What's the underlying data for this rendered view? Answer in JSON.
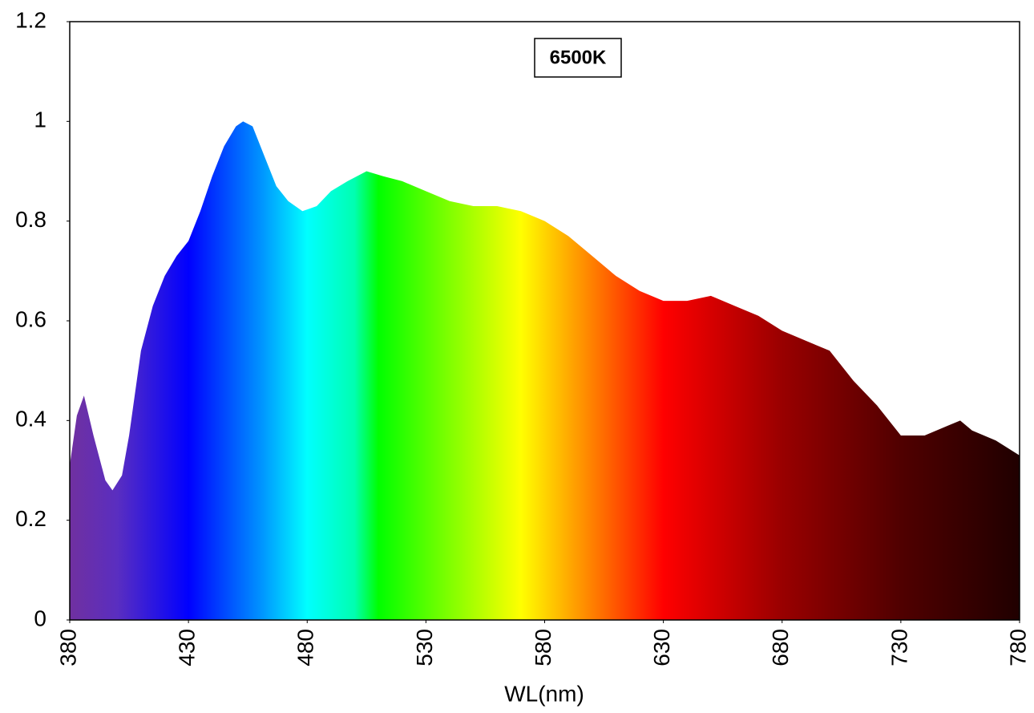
{
  "chart_data": {
    "type": "area",
    "annotation": "6500K",
    "xlabel": "WL(nm)",
    "x": [
      380,
      383,
      386,
      390,
      395,
      398,
      402,
      405,
      410,
      415,
      420,
      425,
      430,
      435,
      440,
      445,
      450,
      453,
      457,
      462,
      467,
      472,
      478,
      484,
      490,
      497,
      505,
      512,
      520,
      530,
      540,
      550,
      560,
      570,
      580,
      590,
      600,
      610,
      620,
      630,
      640,
      650,
      660,
      670,
      680,
      690,
      700,
      710,
      720,
      730,
      740,
      750,
      755,
      760,
      770,
      780
    ],
    "values": [
      0.31,
      0.41,
      0.45,
      0.37,
      0.28,
      0.26,
      0.29,
      0.37,
      0.54,
      0.63,
      0.69,
      0.73,
      0.76,
      0.82,
      0.89,
      0.95,
      0.99,
      1.0,
      0.99,
      0.93,
      0.87,
      0.84,
      0.82,
      0.83,
      0.86,
      0.88,
      0.9,
      0.89,
      0.88,
      0.86,
      0.84,
      0.83,
      0.83,
      0.82,
      0.8,
      0.77,
      0.73,
      0.69,
      0.66,
      0.64,
      0.64,
      0.65,
      0.63,
      0.61,
      0.58,
      0.56,
      0.54,
      0.48,
      0.43,
      0.37,
      0.37,
      0.39,
      0.4,
      0.38,
      0.36,
      0.33
    ],
    "xlim": [
      380,
      780
    ],
    "xticks": [
      380,
      430,
      480,
      530,
      580,
      630,
      680,
      730,
      780
    ],
    "ylim": [
      0,
      1.2
    ],
    "yticks": [
      0,
      0.2,
      0.4,
      0.6,
      0.8,
      1,
      1.2
    ],
    "grid": false
  }
}
